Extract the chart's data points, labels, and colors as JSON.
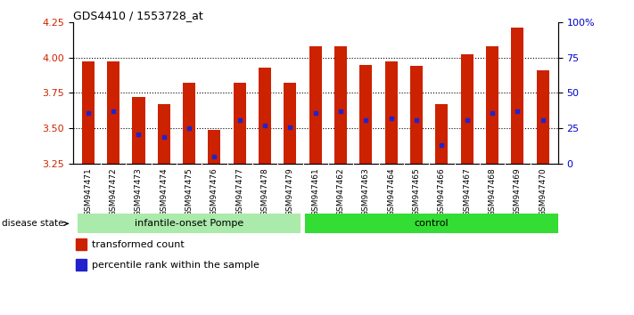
{
  "title": "GDS4410 / 1553728_at",
  "samples": [
    "GSM947471",
    "GSM947472",
    "GSM947473",
    "GSM947474",
    "GSM947475",
    "GSM947476",
    "GSM947477",
    "GSM947478",
    "GSM947479",
    "GSM947461",
    "GSM947462",
    "GSM947463",
    "GSM947464",
    "GSM947465",
    "GSM947466",
    "GSM947467",
    "GSM947468",
    "GSM947469",
    "GSM947470"
  ],
  "bar_tops": [
    3.97,
    3.97,
    3.72,
    3.67,
    3.82,
    3.49,
    3.82,
    3.93,
    3.82,
    4.08,
    4.08,
    3.95,
    3.97,
    3.94,
    3.67,
    4.02,
    4.08,
    4.21,
    3.91
  ],
  "bar_bottom": 3.25,
  "blue_positions": [
    3.61,
    3.62,
    3.46,
    3.44,
    3.5,
    3.3,
    3.56,
    3.52,
    3.51,
    3.61,
    3.62,
    3.56,
    3.57,
    3.56,
    3.38,
    3.56,
    3.61,
    3.62,
    3.56
  ],
  "group1_count": 9,
  "group2_count": 10,
  "group1_label": "infantile-onset Pompe",
  "group2_label": "control",
  "group1_color": "#AAEAAA",
  "group2_color": "#33DD33",
  "ylim_left": [
    3.25,
    4.25
  ],
  "ylim_right": [
    0,
    100
  ],
  "yticks_left": [
    3.25,
    3.5,
    3.75,
    4.0,
    4.25
  ],
  "yticks_right": [
    0,
    25,
    50,
    75,
    100
  ],
  "bar_color": "#CC2200",
  "blue_color": "#2222CC",
  "bg_color": "#FFFFFF",
  "plot_bg_color": "#FFFFFF",
  "xtick_bg_color": "#DDDDDD",
  "legend_red_label": "transformed count",
  "legend_blue_label": "percentile rank within the sample",
  "disease_state_label": "disease state",
  "left_tick_color": "#CC2200",
  "right_tick_color": "#0000CC",
  "grid_lines": [
    3.5,
    3.75,
    4.0
  ],
  "bar_width": 0.5
}
